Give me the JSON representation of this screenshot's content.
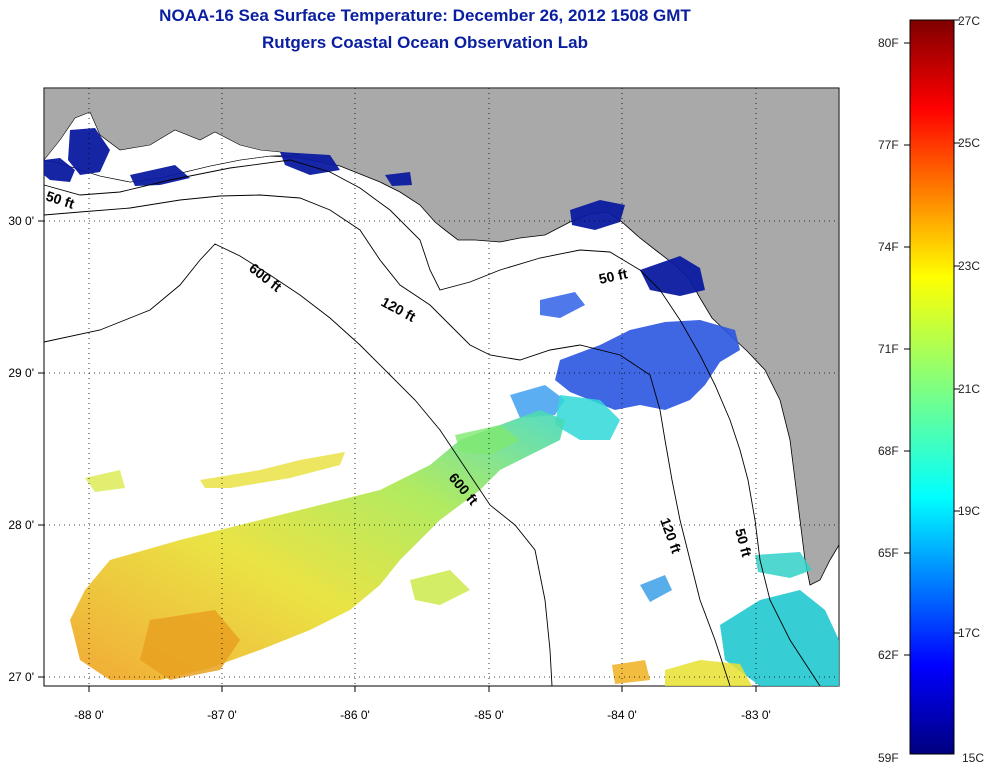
{
  "header": {
    "title_line1": "NOAA-16 Sea Surface Temperature:  December 26, 2012 1508 GMT",
    "title_line2": "Rutgers Coastal Ocean Observation Lab"
  },
  "axes": {
    "lat_labels": [
      "30 0'",
      "29 0'",
      "28 0'",
      "27 0'"
    ],
    "lon_labels": [
      "-88 0'",
      "-87 0'",
      "-86 0'",
      "-85 0'",
      "-84 0'",
      "-83 0'"
    ]
  },
  "contours": {
    "label_50_west": "50 ft",
    "label_50_mid": "50 ft",
    "label_50_east": "50 ft",
    "label_120_a": "120 ft",
    "label_120_b": "120 ft",
    "label_600_a": "600 ft",
    "label_600_b": "600 ft"
  },
  "colorbar": {
    "fahrenheit": [
      "80F",
      "77F",
      "74F",
      "71F",
      "68F",
      "65F",
      "62F",
      "59F"
    ],
    "celsius": [
      "27C",
      "25C",
      "23C",
      "21C",
      "19C",
      "17C",
      "15C"
    ]
  },
  "colors": {
    "land": "#a9a9a9",
    "title": "#0a1fa0",
    "cold": "#00007f",
    "warm": "#7f0000"
  }
}
